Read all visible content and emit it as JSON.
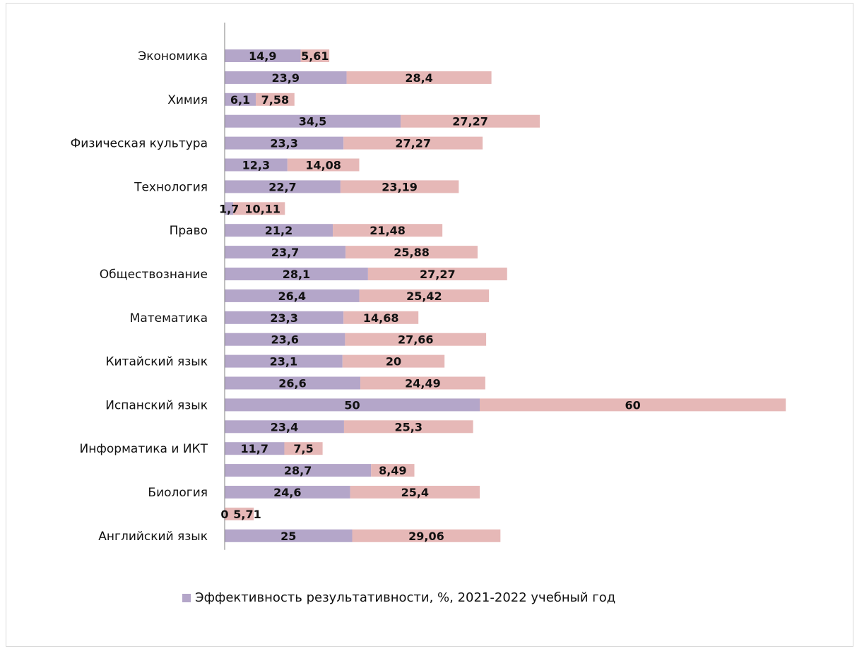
{
  "colors": {
    "series1": "#b4a6c9",
    "series2": "#e6b8b7",
    "axis": "#7f7f7f"
  },
  "legend": {
    "label": "Эффективность результативности, %, 2021-2022 учебный год"
  },
  "chart_data": {
    "type": "bar",
    "orientation": "horizontal",
    "stacked": true,
    "legend_position": "bottom",
    "grid": false,
    "rows": [
      {
        "label": "Экономика",
        "v1": "14,9",
        "v2": "5,61"
      },
      {
        "label": "",
        "v1": "23,9",
        "v2": "28,4"
      },
      {
        "label": "Химия",
        "v1": "6,1",
        "v2": "7,58"
      },
      {
        "label": "",
        "v1": "34,5",
        "v2": "27,27"
      },
      {
        "label": "Физическая культура",
        "v1": "23,3",
        "v2": "27,27"
      },
      {
        "label": "",
        "v1": "12,3",
        "v2": "14,08"
      },
      {
        "label": "Технология",
        "v1": "22,7",
        "v2": "23,19"
      },
      {
        "label": "",
        "v1": "1,7",
        "v2": "10,11"
      },
      {
        "label": "Право",
        "v1": "21,2",
        "v2": "21,48"
      },
      {
        "label": "",
        "v1": "23,7",
        "v2": "25,88"
      },
      {
        "label": "Обществознание",
        "v1": "28,1",
        "v2": "27,27"
      },
      {
        "label": "",
        "v1": "26,4",
        "v2": "25,42"
      },
      {
        "label": "Математика",
        "v1": "23,3",
        "v2": "14,68"
      },
      {
        "label": "",
        "v1": "23,6",
        "v2": "27,66"
      },
      {
        "label": "Китайский язык",
        "v1": "23,1",
        "v2": "20"
      },
      {
        "label": "",
        "v1": "26,6",
        "v2": "24,49"
      },
      {
        "label": "Испанский язык",
        "v1": "50",
        "v2": "60"
      },
      {
        "label": "",
        "v1": "23,4",
        "v2": "25,3"
      },
      {
        "label": "Информатика и ИКТ",
        "v1": "11,7",
        "v2": "7,5"
      },
      {
        "label": "",
        "v1": "28,7",
        "v2": "8,49"
      },
      {
        "label": "Биология",
        "v1": "24,6",
        "v2": "25,4"
      },
      {
        "label": "",
        "v1": "0",
        "v2": "5,71"
      },
      {
        "label": "Английский язык",
        "v1": "25",
        "v2": "29,06"
      }
    ]
  }
}
